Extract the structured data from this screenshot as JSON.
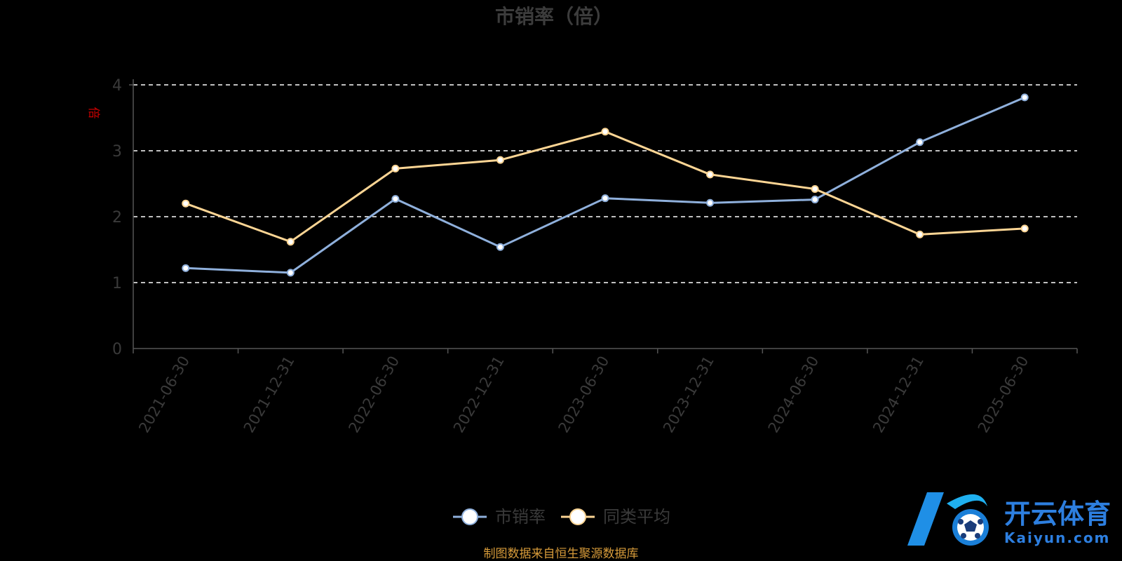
{
  "chart_data": {
    "type": "line",
    "title": "市销率（倍）",
    "ylabel": "倍",
    "xlabel": "",
    "categories": [
      "2021-06-30",
      "2021-12-31",
      "2022-06-30",
      "2022-12-31",
      "2023-06-30",
      "2023-12-31",
      "2024-06-30",
      "2024-12-31",
      "2025-06-30"
    ],
    "ylim": [
      0,
      4
    ],
    "yticks": [
      "0",
      "1",
      "2",
      "3",
      "4"
    ],
    "grid": "dashed horizontal",
    "legend_position": "bottom-center",
    "series": [
      {
        "name": "市销率",
        "color": "#8fb0dc",
        "values": [
          1.22,
          1.15,
          2.27,
          1.54,
          2.28,
          2.21,
          2.26,
          3.13,
          3.81
        ]
      },
      {
        "name": "同类平均",
        "color": "#fcd594",
        "values": [
          2.2,
          1.62,
          2.73,
          2.86,
          3.29,
          2.64,
          2.42,
          1.73,
          1.82
        ]
      }
    ]
  },
  "source_note": "制图数据来自恒生聚源数据库",
  "watermark": {
    "cn": "开云体育",
    "en": "Kaiyun.com",
    "icon": "k-soccer-ball-logo"
  },
  "colors": {
    "background": "#000000",
    "axis": "#555555",
    "grid": "#ffffff"
  }
}
